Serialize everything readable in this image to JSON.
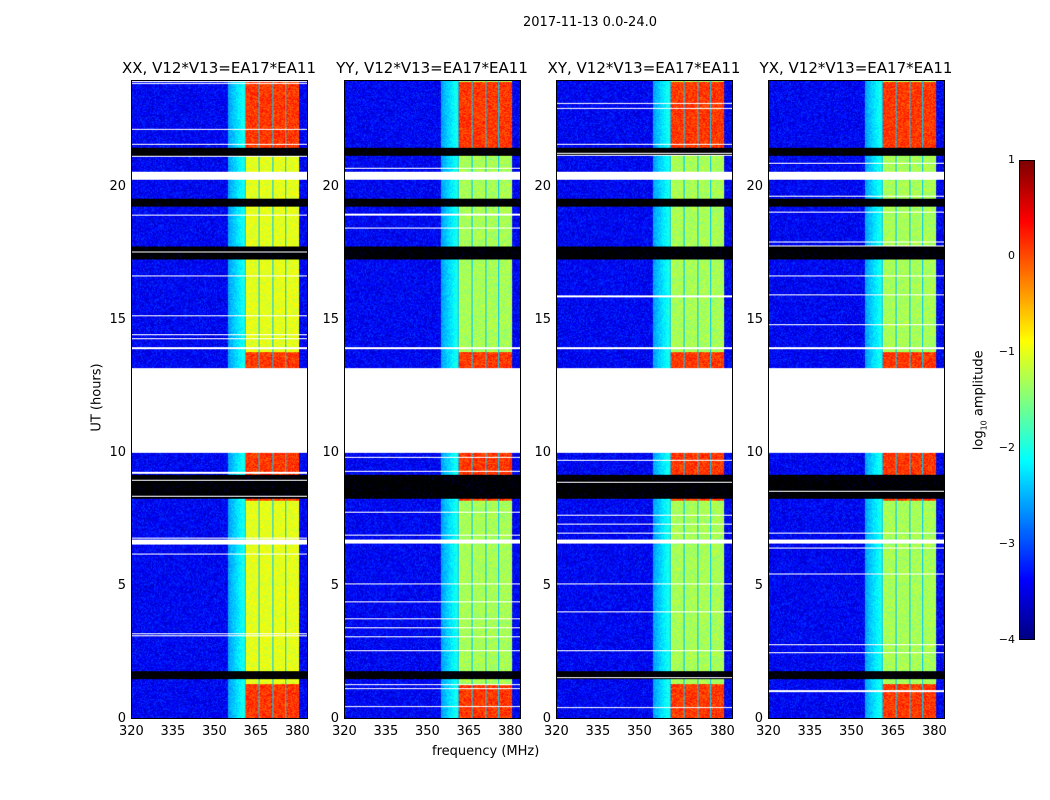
{
  "suptitle": "2017-11-13 0.0-24.0",
  "xlabel": "frequency (MHz)",
  "ylabel": "UT (hours)",
  "colorbar": {
    "label_main": "amplitude",
    "label_log": "log",
    "label_sub": "10",
    "min": -4,
    "max": 1,
    "ticks": [
      "1",
      "0",
      "−1",
      "−2",
      "−3",
      "−4"
    ],
    "tick_values": [
      1,
      0,
      -1,
      -2,
      -3,
      -4
    ],
    "colormap": "jet"
  },
  "chart_data": {
    "type": "heatmap",
    "title": "2017-11-13 0.0-24.0",
    "xlabel": "frequency (MHz)",
    "ylabel": "UT (hours)",
    "xlim": [
      320,
      384
    ],
    "ylim": [
      0,
      24
    ],
    "xticks": [
      320,
      335,
      350,
      365,
      380
    ],
    "yticks": [
      0,
      5,
      10,
      15,
      20
    ],
    "xtick_labels": [
      "320",
      "335",
      "350",
      "365",
      "380"
    ],
    "ytick_labels": [
      "0",
      "5",
      "10",
      "15",
      "20"
    ],
    "zlabel": "log10 amplitude",
    "zlim": [
      -4,
      1
    ],
    "panels": [
      {
        "title": "XX, V12*V13=EA17*EA11",
        "band_level": -1.0
      },
      {
        "title": "YY, V12*V13=EA17*EA11",
        "band_level": -1.3
      },
      {
        "title": "XY, V12*V13=EA17*EA11",
        "band_level": -1.3
      },
      {
        "title": "YX, V12*V13=EA17*EA11",
        "band_level": -1.3
      }
    ],
    "background_level": -3.4,
    "band_mhz": [
      361,
      381
    ],
    "bright_hours": [
      [
        0,
        1.3
      ],
      [
        8.2,
        10.0
      ],
      [
        13.2,
        13.8
      ],
      [
        21.5,
        24
      ]
    ],
    "flagged_white_hours": [
      [
        10.0,
        13.2
      ],
      [
        20.3,
        20.6
      ],
      [
        6.6,
        6.75
      ],
      [
        13.9,
        14.0
      ]
    ],
    "flagged_black_hours": [
      [
        1.5,
        1.8
      ],
      [
        8.3,
        9.2
      ],
      [
        17.3,
        17.8
      ],
      [
        19.3,
        19.6
      ],
      [
        21.2,
        21.5
      ]
    ]
  }
}
